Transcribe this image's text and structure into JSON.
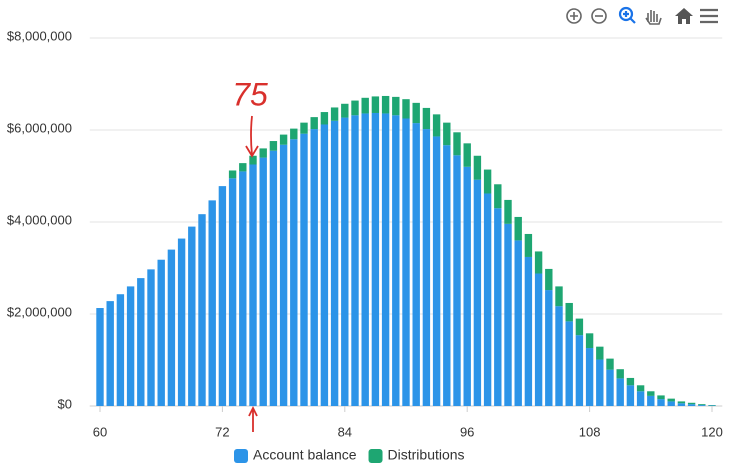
{
  "chart_data": {
    "type": "stacked-bar",
    "x": [
      60,
      61,
      62,
      63,
      64,
      65,
      66,
      67,
      68,
      69,
      70,
      71,
      72,
      73,
      74,
      75,
      76,
      77,
      78,
      79,
      80,
      81,
      82,
      83,
      84,
      85,
      86,
      87,
      88,
      89,
      90,
      91,
      92,
      93,
      94,
      95,
      96,
      97,
      98,
      99,
      100,
      101,
      102,
      103,
      104,
      105,
      106,
      107,
      108,
      109,
      110,
      111,
      112,
      113,
      114,
      115,
      116,
      117,
      118,
      119,
      120
    ],
    "series": [
      {
        "name": "Account balance",
        "color": "#2c94e8",
        "values": [
          2130000,
          2280000,
          2430000,
          2600000,
          2780000,
          2970000,
          3180000,
          3400000,
          3640000,
          3900000,
          4170000,
          4470000,
          4780000,
          4950000,
          5100000,
          5250000,
          5400000,
          5550000,
          5680000,
          5800000,
          5920000,
          6020000,
          6120000,
          6200000,
          6270000,
          6320000,
          6360000,
          6370000,
          6360000,
          6320000,
          6250000,
          6150000,
          6020000,
          5860000,
          5670000,
          5450000,
          5200000,
          4920000,
          4620000,
          4300000,
          3960000,
          3600000,
          3240000,
          2880000,
          2520000,
          2170000,
          1840000,
          1540000,
          1260000,
          1010000,
          790000,
          600000,
          450000,
          320000,
          220000,
          150000,
          100000,
          60000,
          40000,
          20000,
          10000
        ]
      },
      {
        "name": "Distributions",
        "color": "#1ea672",
        "values": [
          0,
          0,
          0,
          0,
          0,
          0,
          0,
          0,
          0,
          0,
          0,
          0,
          0,
          170000,
          180000,
          190000,
          200000,
          210000,
          220000,
          230000,
          240000,
          260000,
          270000,
          290000,
          300000,
          320000,
          340000,
          360000,
          380000,
          400000,
          420000,
          440000,
          460000,
          480000,
          490000,
          500000,
          510000,
          520000,
          520000,
          520000,
          520000,
          510000,
          500000,
          480000,
          460000,
          430000,
          400000,
          360000,
          320000,
          280000,
          240000,
          200000,
          160000,
          130000,
          100000,
          80000,
          60000,
          40000,
          30000,
          20000,
          10000
        ]
      }
    ],
    "xlim": [
      59,
      121
    ],
    "xticks": [
      60,
      72,
      84,
      96,
      108,
      120
    ],
    "ylim": [
      0,
      8000000
    ],
    "yticks": [
      {
        "value": 0,
        "label": "$0"
      },
      {
        "value": 2000000,
        "label": "$2,000,000"
      },
      {
        "value": 4000000,
        "label": "$4,000,000"
      },
      {
        "value": 6000000,
        "label": "$6,000,000"
      },
      {
        "value": 8000000,
        "label": "$8,000,000"
      }
    ],
    "grid": true,
    "legend": "bottom",
    "annotation": "75"
  }
}
